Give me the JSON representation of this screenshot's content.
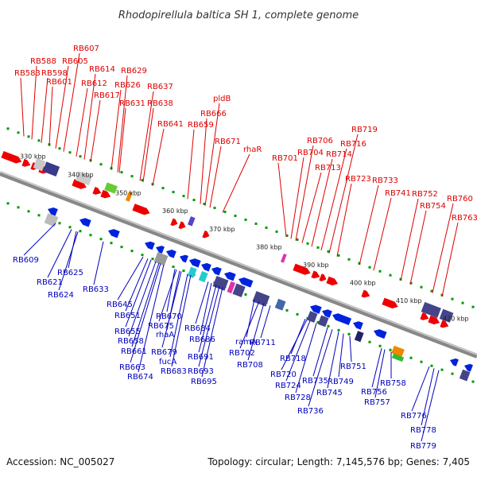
{
  "title": "Rhodopirellula baltica SH 1, complete genome",
  "footer": {
    "accession": "Accession: NC_005027",
    "info": "Topology: circular; Length: 7,145,576 bp; Genes: 7,405"
  },
  "colors": {
    "top_label": "#dd0000",
    "bottom_label": "#0000bb",
    "forward_gene": "#ee0000",
    "reverse_gene": "#0022dd",
    "ruler_tick": "#009900",
    "backbone": "#888888"
  },
  "scale_labels": [
    "330 kbp",
    "340 kbp",
    "350 kbp",
    "360 kbp",
    "370 kbp",
    "380 kbp",
    "390 kbp",
    "400 kbp",
    "410 kbp",
    "420 kbp"
  ],
  "top_labels": [
    "RB583",
    "RB588",
    "RB598",
    "RB601",
    "RB605",
    "RB607",
    "RB612",
    "RB614",
    "RB617",
    "RB626",
    "RB629",
    "RB631",
    "RB637",
    "RB638",
    "RB641",
    "RB659",
    "RB666",
    "pldB",
    "RB671",
    "rhaR",
    "RB701",
    "RB704",
    "RB706",
    "RB713",
    "RB714",
    "RB716",
    "RB719",
    "RB723",
    "RB733",
    "RB741",
    "RB752",
    "RB754",
    "RB760",
    "RB763"
  ],
  "bottom_labels": [
    "RB609",
    "RB621",
    "RB624",
    "RB625",
    "RB633",
    "RB645",
    "RB651",
    "RB655",
    "RB658",
    "RB661",
    "RB663",
    "RB670",
    "RB674",
    "RB675",
    "rhaA",
    "RB679",
    "fucA",
    "RB683",
    "RB684",
    "RB686",
    "RB691",
    "RB693",
    "RB695",
    "ramA",
    "RB702",
    "RB708",
    "RB711",
    "RB718",
    "RB720",
    "RB724",
    "RB728",
    "RB735",
    "RB736",
    "RB745",
    "RB749",
    "RB751",
    "RB756",
    "RB757",
    "RB758",
    "RB776",
    "RB778",
    "RB779"
  ]
}
